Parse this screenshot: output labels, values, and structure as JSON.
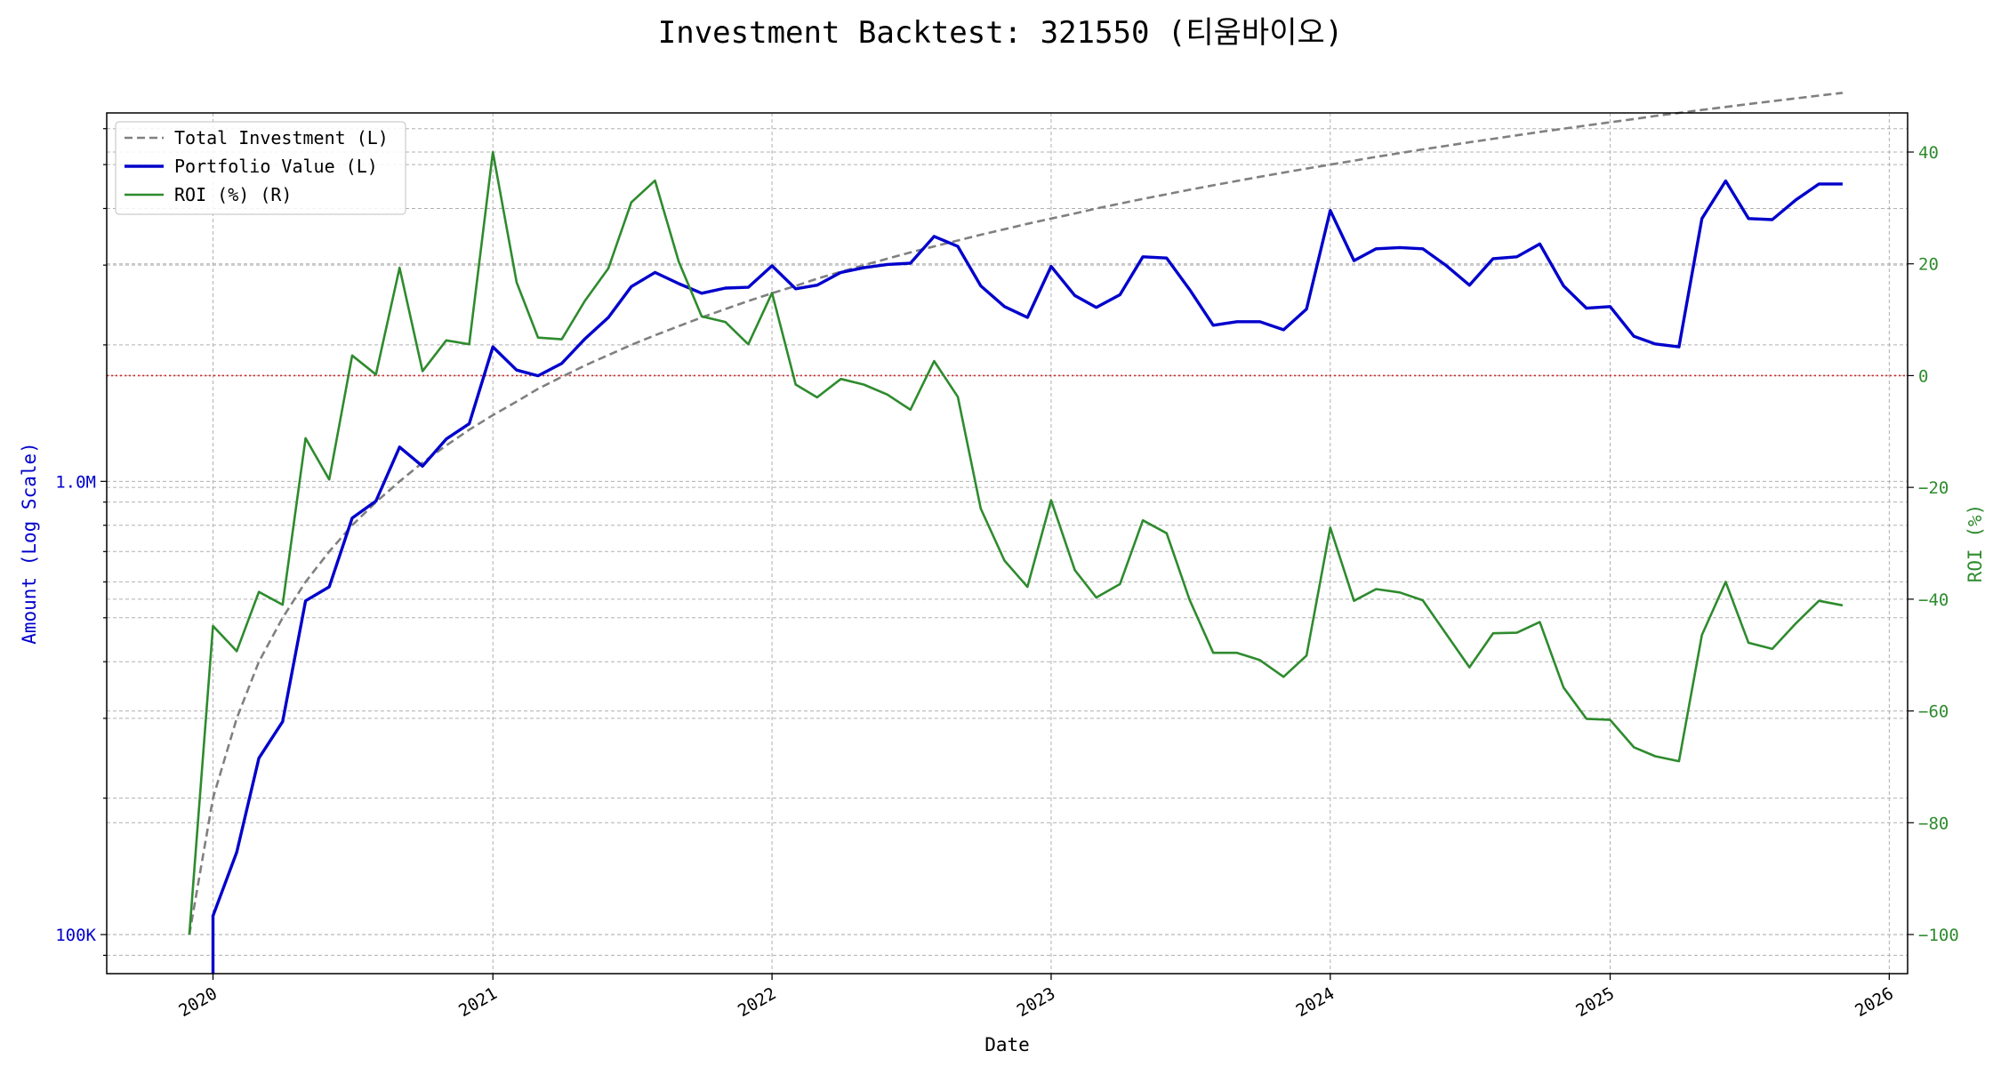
{
  "chart_data": {
    "type": "line",
    "title": "Investment Backtest: 321550 (티움바이오)",
    "xlabel": "Date",
    "ylabel_left": "Amount (Log Scale)",
    "ylabel_right": "ROI (%)",
    "left_axis": {
      "scale": "log",
      "range": [
        82000,
        6500000
      ],
      "tick_values": [
        100000,
        1000000
      ],
      "tick_labels": [
        "100K",
        "1.0M"
      ],
      "color": "#0000cc"
    },
    "right_axis": {
      "scale": "linear",
      "range": [
        -107,
        47
      ],
      "tick_values": [
        -100,
        -80,
        -60,
        -40,
        -20,
        0,
        20,
        40
      ],
      "tick_labels": [
        "−100",
        "−80",
        "−60",
        "−40",
        "−20",
        "0",
        "20",
        "40"
      ],
      "color": "#2e8b2e"
    },
    "x_axis": {
      "range": [
        "2019-08-15",
        "2026-01-25"
      ],
      "tick_values": [
        "2020-01-01",
        "2021-01-01",
        "2022-01-01",
        "2023-01-01",
        "2024-01-01",
        "2025-01-01",
        "2026-01-01"
      ],
      "tick_labels": [
        "2020",
        "2021",
        "2022",
        "2023",
        "2024",
        "2025",
        "2026"
      ]
    },
    "grid": true,
    "reference_line": {
      "axis": "right",
      "value": 0,
      "color": "#d62728",
      "style": "dotted"
    },
    "legend": {
      "placement": "top-left",
      "entries": [
        "Total Investment (L)",
        "Portfolio Value (L)",
        "ROI (%) (R)"
      ]
    },
    "x": [
      "2019-12-01",
      "2020-01-01",
      "2020-02-01",
      "2020-03-01",
      "2020-04-01",
      "2020-05-01",
      "2020-06-01",
      "2020-07-01",
      "2020-08-01",
      "2020-09-01",
      "2020-10-01",
      "2020-11-01",
      "2020-12-01",
      "2021-01-01",
      "2021-02-01",
      "2021-03-01",
      "2021-04-01",
      "2021-05-01",
      "2021-06-01",
      "2021-07-01",
      "2021-08-01",
      "2021-09-01",
      "2021-10-01",
      "2021-11-01",
      "2021-12-01",
      "2022-01-01",
      "2022-02-01",
      "2022-03-01",
      "2022-04-01",
      "2022-05-01",
      "2022-06-01",
      "2022-07-01",
      "2022-08-01",
      "2022-09-01",
      "2022-10-01",
      "2022-11-01",
      "2022-12-01",
      "2023-01-01",
      "2023-02-01",
      "2023-03-01",
      "2023-04-01",
      "2023-05-01",
      "2023-06-01",
      "2023-07-01",
      "2023-08-01",
      "2023-09-01",
      "2023-10-01",
      "2023-11-01",
      "2023-12-01",
      "2024-01-01",
      "2024-02-01",
      "2024-03-01",
      "2024-04-01",
      "2024-05-01",
      "2024-06-01",
      "2024-07-01",
      "2024-08-01",
      "2024-09-01",
      "2024-10-01",
      "2024-11-01",
      "2024-12-01",
      "2025-01-01",
      "2025-02-01",
      "2025-03-01",
      "2025-04-01",
      "2025-05-01",
      "2025-06-01",
      "2025-07-01",
      "2025-08-01",
      "2025-09-01",
      "2025-10-01",
      "2025-11-01"
    ],
    "series": [
      {
        "name": "Total Investment (L)",
        "axis": "left",
        "color": "#808080",
        "style": "dashed",
        "values": [
          100000,
          200000,
          300000,
          400000,
          500000,
          600000,
          700000,
          800000,
          900000,
          1000000,
          1100000,
          1200000,
          1300000,
          1400000,
          1500000,
          1600000,
          1700000,
          1800000,
          1900000,
          2000000,
          2100000,
          2200000,
          2300000,
          2400000,
          2500000,
          2600000,
          2700000,
          2800000,
          2900000,
          3000000,
          3100000,
          3200000,
          3300000,
          3400000,
          3500000,
          3600000,
          3700000,
          3800000,
          3900000,
          4000000,
          4100000,
          4200000,
          4300000,
          4400000,
          4500000,
          4600000,
          4700000,
          4800000,
          4900000,
          5000000,
          5100000,
          5200000,
          5300000,
          5400000,
          5500000,
          5600000,
          5700000,
          5800000,
          5900000,
          6000000,
          6100000,
          6200000,
          6300000,
          6400000,
          6500000,
          6600000,
          6700000,
          6800000,
          6900000,
          7000000,
          7100000,
          7200000
        ]
      },
      {
        "name": "Portfolio Value (L)",
        "axis": "left",
        "color": "#0000cc",
        "style": "solid",
        "values": [
          null,
          110000,
          152000,
          245000,
          295000,
          545000,
          585000,
          830000,
          905000,
          1190000,
          1080000,
          1240000,
          1340000,
          1980000,
          1760000,
          1710000,
          1820000,
          2060000,
          2300000,
          2690000,
          2890000,
          2730000,
          2600000,
          2670000,
          2680000,
          2990000,
          2660000,
          2710000,
          2890000,
          2960000,
          3010000,
          3030000,
          3470000,
          3300000,
          2700000,
          2430000,
          2300000,
          2980000,
          2570000,
          2420000,
          2580000,
          3130000,
          3110000,
          2650000,
          2210000,
          2250000,
          2250000,
          2160000,
          2400000,
          3960000,
          3070000,
          3260000,
          3280000,
          3260000,
          2990000,
          2710000,
          3100000,
          3130000,
          3340000,
          2700000,
          2410000,
          2430000,
          2090000,
          2010000,
          1980000,
          3800000,
          4600000,
          3800000,
          3780000,
          4180000,
          4530000,
          4530000
        ]
      },
      {
        "name": "ROI (%) (R)",
        "axis": "right",
        "color": "#2e8b2e",
        "style": "solid",
        "values": [
          -100,
          -44.8,
          -49.3,
          -38.7,
          -41.0,
          -11.2,
          -18.6,
          3.6,
          0.2,
          19.3,
          0.8,
          6.3,
          5.6,
          40,
          16.7,
          6.8,
          6.5,
          13.3,
          19.2,
          31.0,
          34.9,
          20.4,
          10.6,
          9.6,
          5.6,
          14.8,
          -1.6,
          -3.9,
          -0.6,
          -1.6,
          -3.4,
          -6.1,
          2.6,
          -3.8,
          -23.8,
          -33.1,
          -37.8,
          -22.3,
          -34.8,
          -39.7,
          -37.3,
          -25.9,
          -28.2,
          -40.1,
          -49.6,
          -49.6,
          -50.9,
          -53.9,
          -50.1,
          -27.2,
          -40.3,
          -38.2,
          -38.8,
          -40.2,
          -46.3,
          -52.2,
          -46.1,
          -46.0,
          -44.1,
          -55.8,
          -61.4,
          -61.6,
          -66.5,
          -68.1,
          -69.0,
          -46.4,
          -36.9,
          -47.8,
          -48.9,
          -44.3,
          -40.3,
          -41.1
        ]
      }
    ]
  }
}
